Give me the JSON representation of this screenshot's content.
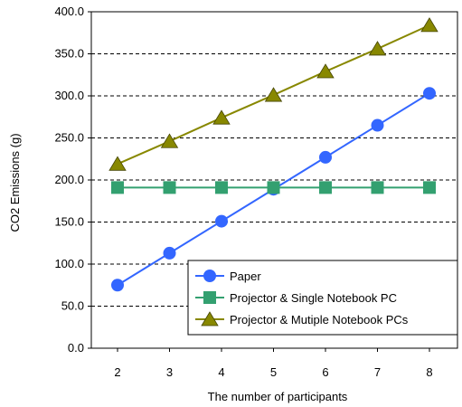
{
  "chart_data": {
    "type": "line",
    "title": "",
    "xlabel": "The number of participants",
    "ylabel": "CO2 Emissions (g)",
    "categories": [
      "2",
      "3",
      "4",
      "5",
      "6",
      "7",
      "8"
    ],
    "ylim": [
      0,
      400
    ],
    "yticks": [
      "0.0",
      "50.0",
      "100.0",
      "150.0",
      "200.0",
      "250.0",
      "300.0",
      "350.0",
      "400.0"
    ],
    "grid": "horizontal dashed",
    "legend_position": "bottom-right",
    "series": [
      {
        "name": "Paper",
        "marker": "circle",
        "color": "#3366ff",
        "values": [
          75,
          113,
          151,
          189,
          227,
          265,
          303
        ]
      },
      {
        "name": "Projector & Single Notebook PC",
        "marker": "square",
        "color": "#33a070",
        "values": [
          191,
          191,
          191,
          191,
          191,
          191,
          191
        ]
      },
      {
        "name": "Projector & Mutiple Notebook PCs",
        "marker": "triangle",
        "color": "#888800",
        "values": [
          219,
          246,
          274,
          301,
          329,
          356,
          384
        ]
      }
    ]
  }
}
